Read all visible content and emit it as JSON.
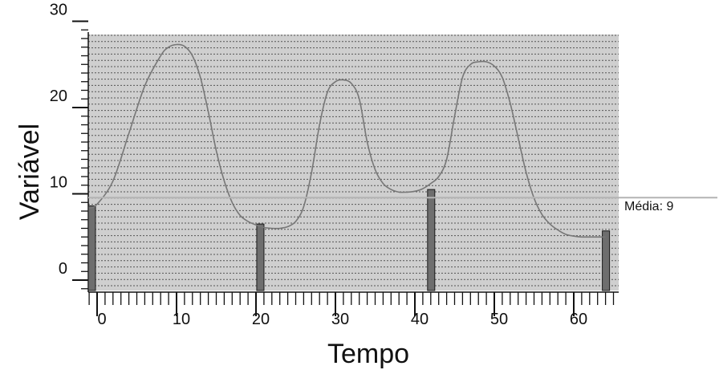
{
  "chart_data": {
    "type": "line",
    "xlabel": "Tempo",
    "ylabel": "Variável",
    "xlim": [
      -1,
      65
    ],
    "ylim": [
      -1,
      30
    ],
    "x_ticks": [
      0,
      10,
      20,
      30,
      40,
      50,
      60
    ],
    "y_ticks": [
      0,
      10,
      20,
      30
    ],
    "grid": "horizontal dashed",
    "plot_background": "#cfcfcf",
    "line_color": "#777777",
    "bar_color": "#6e6e6e",
    "mean_line_color": "#b4b4b4",
    "series": [
      {
        "type": "line",
        "x": [
          -1,
          0,
          2,
          4,
          6,
          8,
          9,
          10,
          11,
          12,
          13,
          14,
          15,
          16,
          17,
          18,
          19,
          20,
          21,
          22,
          23,
          24,
          25,
          26,
          27,
          28,
          29,
          30,
          31,
          32,
          33,
          34,
          35,
          36,
          37,
          38,
          39,
          40,
          41,
          42,
          43,
          44,
          45,
          46,
          47,
          48,
          49,
          50,
          51,
          52,
          53,
          54,
          55,
          56,
          57,
          58,
          59,
          60,
          61,
          62,
          63,
          64
        ],
        "y": [
          8.3,
          8.8,
          11.5,
          17.0,
          22.5,
          26.0,
          27.0,
          27.3,
          27.1,
          26.0,
          23.5,
          19.5,
          15.0,
          11.5,
          9.0,
          7.5,
          6.8,
          6.4,
          6.1,
          6.0,
          6.0,
          6.2,
          6.8,
          8.5,
          12.5,
          18.0,
          21.8,
          23.0,
          23.2,
          22.8,
          21.0,
          16.0,
          12.8,
          11.2,
          10.5,
          10.2,
          10.2,
          10.3,
          10.6,
          11.2,
          12.0,
          14.0,
          19.0,
          23.5,
          25.0,
          25.3,
          25.3,
          24.8,
          23.5,
          20.5,
          16.5,
          12.5,
          9.5,
          7.6,
          6.5,
          5.8,
          5.3,
          5.1,
          5.0,
          5.0,
          5.0,
          5.0
        ]
      },
      {
        "type": "bar",
        "x": [
          -1,
          20.5,
          42,
          64
        ],
        "y": [
          8.6,
          6.5,
          10.5,
          5.7
        ]
      }
    ],
    "mean": {
      "value": 9,
      "label": "Média: 9"
    }
  }
}
